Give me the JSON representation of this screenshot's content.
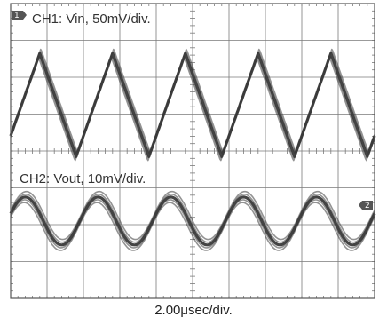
{
  "chart_data": {
    "type": "line",
    "grid": "on",
    "grid_divisions": {
      "x": 10,
      "y": 8
    },
    "xlabel": "2.00μsec/div.",
    "x_unit": "μs",
    "xlim": [
      0,
      20
    ],
    "colors": {
      "trace": "#3a3a3a",
      "grid": "#7a7a7a",
      "background": "#ffffff"
    },
    "channels": [
      {
        "name": "CH1",
        "label": "CH1: Vin, 50mV/div.",
        "marker": "1",
        "waveform": "triangle",
        "period_us": 4.0,
        "peaks_x_us": [
          1.6,
          5.6,
          9.6,
          13.6,
          17.6
        ],
        "troughs_x_us": [
          3.6,
          7.6,
          11.6,
          15.6,
          19.6
        ],
        "amplitude_div": 1.4,
        "center_div": 2.75,
        "trace_spread_div": 0.12
      },
      {
        "name": "CH2",
        "label": "CH2: Vout, 10mV/div.",
        "marker": "2",
        "waveform": "sine",
        "period_us": 4.0,
        "peaks_x_us": [
          0.8,
          4.8,
          8.8,
          12.8,
          16.8
        ],
        "troughs_x_us": [
          2.8,
          6.8,
          10.8,
          14.8,
          18.8
        ],
        "amplitude_div": 0.65,
        "center_div": 5.9,
        "trace_spread_div": 0.15
      }
    ]
  }
}
